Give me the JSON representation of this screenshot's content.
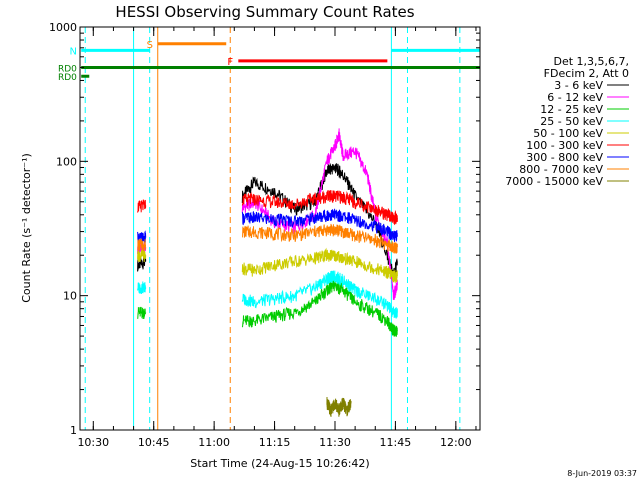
{
  "chart_data": {
    "type": "line",
    "title": "HESSI Observing Summary Count Rates",
    "xlabel": "Start Time (24-Aug-15 10:26:42)",
    "ylabel": "Count Rate (s⁻¹ detector⁻¹)",
    "y_scale": "log",
    "ylim": [
      1,
      1000
    ],
    "y_ticks": [
      {
        "value": 1,
        "label": "1"
      },
      {
        "value": 10,
        "label": "10"
      },
      {
        "value": 100,
        "label": "100"
      },
      {
        "value": 1000,
        "label": "1000"
      }
    ],
    "xlim": [
      "10:26:42",
      "12:06:00"
    ],
    "x_ticks": [
      {
        "time": "10:30",
        "label": "10:30"
      },
      {
        "time": "10:45",
        "label": "10:45"
      },
      {
        "time": "11:00",
        "label": "11:00"
      },
      {
        "time": "11:15",
        "label": "11:15"
      },
      {
        "time": "11:30",
        "label": "11:30"
      },
      {
        "time": "11:45",
        "label": "11:45"
      },
      {
        "time": "12:00",
        "label": "12:00"
      }
    ],
    "legend_header": [
      "Det 1,3,5,6,7,",
      "FDecim 2, Att 0"
    ],
    "legend_position": "right",
    "series": [
      {
        "name": "3 - 6 keV",
        "color": "#000000",
        "x": [
          "10:41:00",
          "10:43:00",
          "11:07:00",
          "11:10:00",
          "11:15:00",
          "11:20:00",
          "11:25:00",
          "11:28:00",
          "11:30:00",
          "11:32:00",
          "11:35:00",
          "11:40:00",
          "11:43:00",
          "11:44:30",
          "11:45:30"
        ],
        "y": [
          17,
          18,
          55,
          70,
          60,
          44,
          50,
          85,
          90,
          80,
          55,
          35,
          20,
          14,
          18
        ]
      },
      {
        "name": "6 - 12 keV",
        "color": "#ff00ff",
        "x": [
          "10:41:00",
          "10:43:00",
          "11:07:00",
          "11:10:00",
          "11:15:00",
          "11:20:00",
          "11:25:00",
          "11:28:00",
          "11:30:00",
          "11:31:00",
          "11:32:00",
          "11:35:00",
          "11:38:00",
          "11:40:00",
          "11:43:00",
          "11:44:30",
          "11:45:30"
        ],
        "y": [
          22,
          23,
          45,
          50,
          35,
          32,
          40,
          100,
          130,
          160,
          110,
          120,
          80,
          40,
          25,
          10,
          12
        ]
      },
      {
        "name": "12 - 25 keV",
        "color": "#00cc00",
        "x": [
          "10:41:00",
          "10:43:00",
          "11:07:00",
          "11:10:00",
          "11:15:00",
          "11:20:00",
          "11:25:00",
          "11:28:00",
          "11:30:00",
          "11:32:00",
          "11:35:00",
          "11:40:00",
          "11:43:00",
          "11:44:30",
          "11:45:30"
        ],
        "y": [
          7.5,
          7.5,
          6.5,
          6.5,
          7,
          7.5,
          9,
          11,
          12,
          11,
          9,
          7.5,
          6.5,
          5.5,
          5.5
        ]
      },
      {
        "name": "25 - 50 keV",
        "color": "#00ffff",
        "x": [
          "10:41:00",
          "10:43:00",
          "11:07:00",
          "11:10:00",
          "11:15:00",
          "11:20:00",
          "11:25:00",
          "11:28:00",
          "11:30:00",
          "11:32:00",
          "11:35:00",
          "11:40:00",
          "11:43:00",
          "11:44:30",
          "11:45:30"
        ],
        "y": [
          11.5,
          11.5,
          9.5,
          9,
          9.5,
          10,
          11.5,
          13.5,
          14,
          13,
          11,
          9.5,
          8.5,
          7.5,
          7.5
        ]
      },
      {
        "name": "50 - 100 keV",
        "color": "#cccc00",
        "x": [
          "10:41:00",
          "10:43:00",
          "11:07:00",
          "11:10:00",
          "11:15:00",
          "11:20:00",
          "11:25:00",
          "11:28:00",
          "11:30:00",
          "11:32:00",
          "11:35:00",
          "11:40:00",
          "11:43:00",
          "11:44:30",
          "11:45:30"
        ],
        "y": [
          20,
          20,
          16,
          15.5,
          17,
          18,
          19,
          20,
          20,
          19,
          18,
          16,
          15,
          14,
          14
        ]
      },
      {
        "name": "100 - 300 keV",
        "color": "#ff0000",
        "x": [
          "10:41:00",
          "10:43:00",
          "11:07:00",
          "11:10:00",
          "11:15:00",
          "11:20:00",
          "11:25:00",
          "11:28:00",
          "11:30:00",
          "11:32:00",
          "11:35:00",
          "11:40:00",
          "11:43:00",
          "11:44:30",
          "11:45:30"
        ],
        "y": [
          46,
          47,
          52,
          52,
          50,
          48,
          53,
          55,
          55,
          54,
          50,
          44,
          40,
          38,
          38
        ]
      },
      {
        "name": "300 - 800 keV",
        "color": "#0000ff",
        "x": [
          "10:41:00",
          "10:43:00",
          "11:07:00",
          "11:10:00",
          "11:15:00",
          "11:20:00",
          "11:25:00",
          "11:28:00",
          "11:30:00",
          "11:32:00",
          "11:35:00",
          "11:40:00",
          "11:43:00",
          "11:44:30",
          "11:45:30"
        ],
        "y": [
          27,
          27,
          38,
          38,
          37,
          36,
          38,
          40,
          40,
          39,
          37,
          33,
          30,
          28,
          28
        ]
      },
      {
        "name": "800 - 7000 keV",
        "color": "#ff8000",
        "x": [
          "10:41:00",
          "10:43:00",
          "11:07:00",
          "11:10:00",
          "11:15:00",
          "11:20:00",
          "11:25:00",
          "11:28:00",
          "11:30:00",
          "11:32:00",
          "11:35:00",
          "11:40:00",
          "11:43:00",
          "11:44:30",
          "11:45:30"
        ],
        "y": [
          24,
          24,
          30,
          30,
          29,
          28,
          30,
          31,
          31,
          30,
          28,
          26,
          24,
          23,
          23
        ]
      },
      {
        "name": "7000 - 15000 keV",
        "color": "#808000",
        "x": [
          "11:28:00",
          "11:29:00",
          "11:30:00",
          "11:31:00",
          "11:32:00",
          "11:33:00",
          "11:34:00"
        ],
        "y": [
          1.6,
          1.4,
          1.6,
          1.4,
          1.6,
          1.4,
          1.6
        ]
      }
    ],
    "markers": [
      {
        "label": "RD0",
        "color": "#008000",
        "x_start": "10:27:00",
        "x_end": "10:29:00",
        "y": 430
      },
      {
        "label": "RD0",
        "color": "#008000",
        "x_start": "10:27:00",
        "x_end": "12:06:00",
        "y": 500
      }
    ],
    "flags": [
      {
        "label": "S",
        "color": "#ff8000",
        "x_start": "10:46:00",
        "x_end": "11:03:00",
        "y": 750
      },
      {
        "label": "N",
        "color": "#00ffff",
        "x_start": "10:27:00",
        "x_end": "10:44:00",
        "y": 670
      },
      {
        "label": "",
        "color": "#00ffff",
        "x_start": "11:44:00",
        "x_end": "12:06:00",
        "y": 670
      },
      {
        "label": "F",
        "color": "#ff0000",
        "x_start": "11:06:00",
        "x_end": "11:43:00",
        "y": 560
      }
    ],
    "vertical_lines": [
      {
        "x": "10:28:00",
        "color": "#00ffff",
        "style": "dashed"
      },
      {
        "x": "10:40:00",
        "color": "#00ffff",
        "style": "solid"
      },
      {
        "x": "10:44:00",
        "color": "#00ffff",
        "style": "dashed"
      },
      {
        "x": "10:46:00",
        "color": "#ff8000",
        "style": "solid"
      },
      {
        "x": "11:04:00",
        "color": "#ff8000",
        "style": "dashed"
      },
      {
        "x": "11:44:00",
        "color": "#00ffff",
        "style": "solid"
      },
      {
        "x": "11:48:00",
        "color": "#00ffff",
        "style": "dashed"
      },
      {
        "x": "12:01:00",
        "color": "#00ffff",
        "style": "dashed"
      }
    ],
    "footer_date": "8-Jun-2019 03:37"
  }
}
